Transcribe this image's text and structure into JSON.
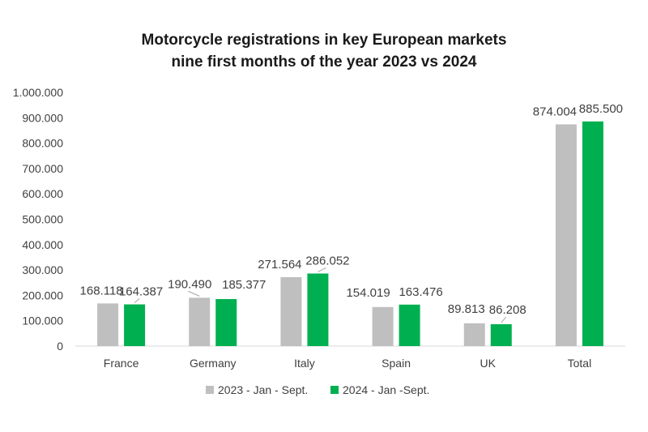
{
  "chart_data": {
    "type": "bar",
    "title_line1": "Motorcycle registrations in key European markets",
    "title_line2": "nine first months of the year 2023 vs 2024",
    "categories": [
      "France",
      "Germany",
      "Italy",
      "Spain",
      "UK",
      "Total"
    ],
    "series": [
      {
        "name": "2023 - Jan - Sept.",
        "color": "#bfbfbf",
        "values": [
          168118,
          190490,
          271564,
          154019,
          89813,
          874004
        ],
        "labels": [
          "168.118",
          "190.490",
          "271.564",
          "154.019",
          "89.813",
          "874.004"
        ]
      },
      {
        "name": "2024 - Jan -Sept.",
        "color": "#00b050",
        "values": [
          164387,
          185377,
          286052,
          163476,
          86208,
          885500
        ],
        "labels": [
          "164.387",
          "185.377",
          "286.052",
          "163.476",
          "86.208",
          "885.500"
        ]
      }
    ],
    "ylim": [
      0,
      1000000
    ],
    "yticks": [
      0,
      100000,
      200000,
      300000,
      400000,
      500000,
      600000,
      700000,
      800000,
      900000,
      1000000
    ],
    "ytick_labels": [
      "0",
      "100.000",
      "200.000",
      "300.000",
      "400.000",
      "500.000",
      "600.000",
      "700.000",
      "800.000",
      "900.000",
      "1.000.000"
    ],
    "grid": false,
    "legend_position": "bottom"
  }
}
